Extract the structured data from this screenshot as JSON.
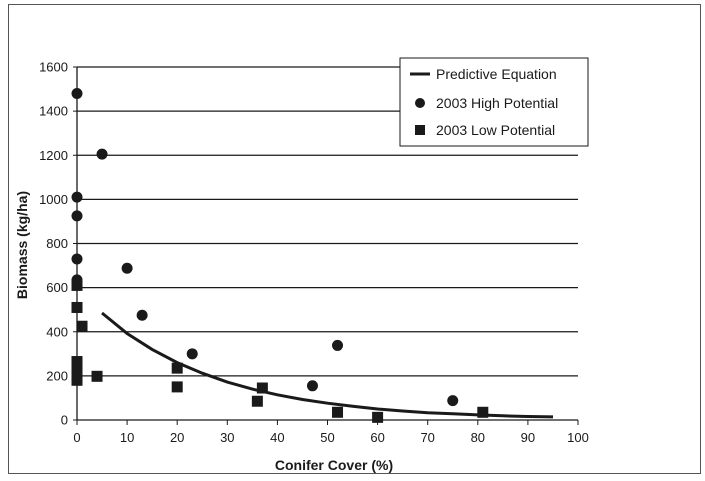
{
  "chart_data": {
    "type": "scatter",
    "xlabel": "Conifer Cover (%)",
    "ylabel": "Biomass (kg/ha)",
    "xlim": [
      0,
      100
    ],
    "ylim": [
      0,
      1600
    ],
    "xticks": [
      0,
      10,
      20,
      30,
      40,
      50,
      60,
      70,
      80,
      90,
      100
    ],
    "yticks": [
      0,
      200,
      400,
      600,
      800,
      1000,
      1200,
      1400,
      1600
    ],
    "grid": "horizontal",
    "legend_position": "top-right",
    "series": [
      {
        "name": "Predictive Equation",
        "kind": "line",
        "color": "#1a1a1a",
        "points": [
          [
            5,
            485
          ],
          [
            10,
            392
          ],
          [
            15,
            320
          ],
          [
            20,
            260
          ],
          [
            25,
            212
          ],
          [
            30,
            172
          ],
          [
            35,
            140
          ],
          [
            40,
            114
          ],
          [
            45,
            93
          ],
          [
            50,
            76
          ],
          [
            55,
            62
          ],
          [
            60,
            50
          ],
          [
            65,
            41
          ],
          [
            70,
            33
          ],
          [
            75,
            28
          ],
          [
            80,
            23
          ],
          [
            85,
            19
          ],
          [
            90,
            16
          ],
          [
            95,
            14
          ]
        ]
      },
      {
        "name": "2003 High Potential",
        "kind": "scatter",
        "marker": "circle",
        "color": "#1a1a1a",
        "points": [
          [
            0,
            1480
          ],
          [
            0,
            1010
          ],
          [
            0,
            925
          ],
          [
            0,
            730
          ],
          [
            0,
            635
          ],
          [
            5,
            1205
          ],
          [
            10,
            688
          ],
          [
            13,
            475
          ],
          [
            23,
            300
          ],
          [
            47,
            155
          ],
          [
            52,
            338
          ],
          [
            75,
            88
          ]
        ]
      },
      {
        "name": "2003 Low Potential",
        "kind": "scatter",
        "marker": "square",
        "color": "#1a1a1a",
        "points": [
          [
            0,
            610
          ],
          [
            0,
            510
          ],
          [
            0,
            265
          ],
          [
            0,
            235
          ],
          [
            0,
            205
          ],
          [
            0,
            180
          ],
          [
            1,
            425
          ],
          [
            4,
            198
          ],
          [
            20,
            235
          ],
          [
            20,
            150
          ],
          [
            36,
            85
          ],
          [
            37,
            145
          ],
          [
            52,
            35
          ],
          [
            60,
            12
          ],
          [
            81,
            35
          ]
        ]
      }
    ]
  }
}
